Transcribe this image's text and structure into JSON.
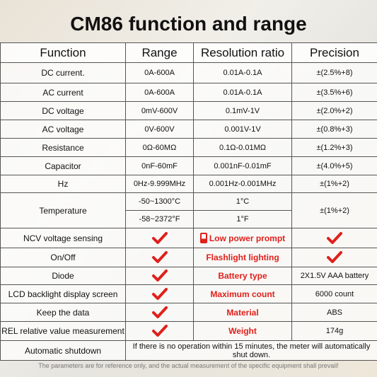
{
  "title": "CM86 function and range",
  "table": {
    "header": [
      "Function",
      "Range",
      "Resolution ratio",
      "Precision"
    ],
    "rows": [
      [
        "DC current.",
        "0A-600A",
        "0.01A-0.1A",
        "±(2.5%+8)"
      ],
      [
        "AC current",
        "0A-600A",
        "0.01A-0.1A",
        "±(3.5%+6)"
      ],
      [
        "DC voltage",
        "0mV-600V",
        "0.1mV-1V",
        "±(2.0%+2)"
      ],
      [
        "AC voltage",
        "0V-600V",
        "0.001V-1V",
        "±(0.8%+3)"
      ],
      [
        "Resistance",
        "0Ω-60MΩ",
        "0.1Ω-0.01MΩ",
        "±(1.2%+3)"
      ],
      [
        "Capacitor",
        "0nF-60mF",
        "0.001nF-0.01mF",
        "±(4.0%+5)"
      ],
      [
        "Hz",
        "0Hz-9.999MHz",
        "0.001Hz-0.001MHz",
        "±(1%+2)"
      ]
    ],
    "temperature": {
      "function": "Temperature",
      "ranges": [
        "-50~1300°C",
        "-58~2372°F"
      ],
      "resolutions": [
        "1°C",
        "1°F"
      ],
      "precision": "±(1%+2)"
    },
    "features": [
      {
        "function": "NCV voltage sensing",
        "feature": "Low power prompt"
      },
      {
        "function": "On/Off",
        "feature": "Flashlight lighting"
      },
      {
        "function": "Diode",
        "feature": "Battery type",
        "value": "2X1.5V AAA battery"
      },
      {
        "function": "LCD backlight display screen",
        "feature": "Maximum count",
        "value": "6000 count"
      },
      {
        "function": "Keep the data",
        "feature": "Material",
        "value": "ABS"
      },
      {
        "function": "REL relative value measurement",
        "feature": "Weight",
        "value": "174g"
      }
    ],
    "shutdown": {
      "function": "Automatic shutdown",
      "note": "If there is no operation within 15 minutes, the meter will automatically shut down."
    }
  },
  "footnote": "The parameters are for reference only, and the actual measurement of the specific equipment shall prevail!"
}
